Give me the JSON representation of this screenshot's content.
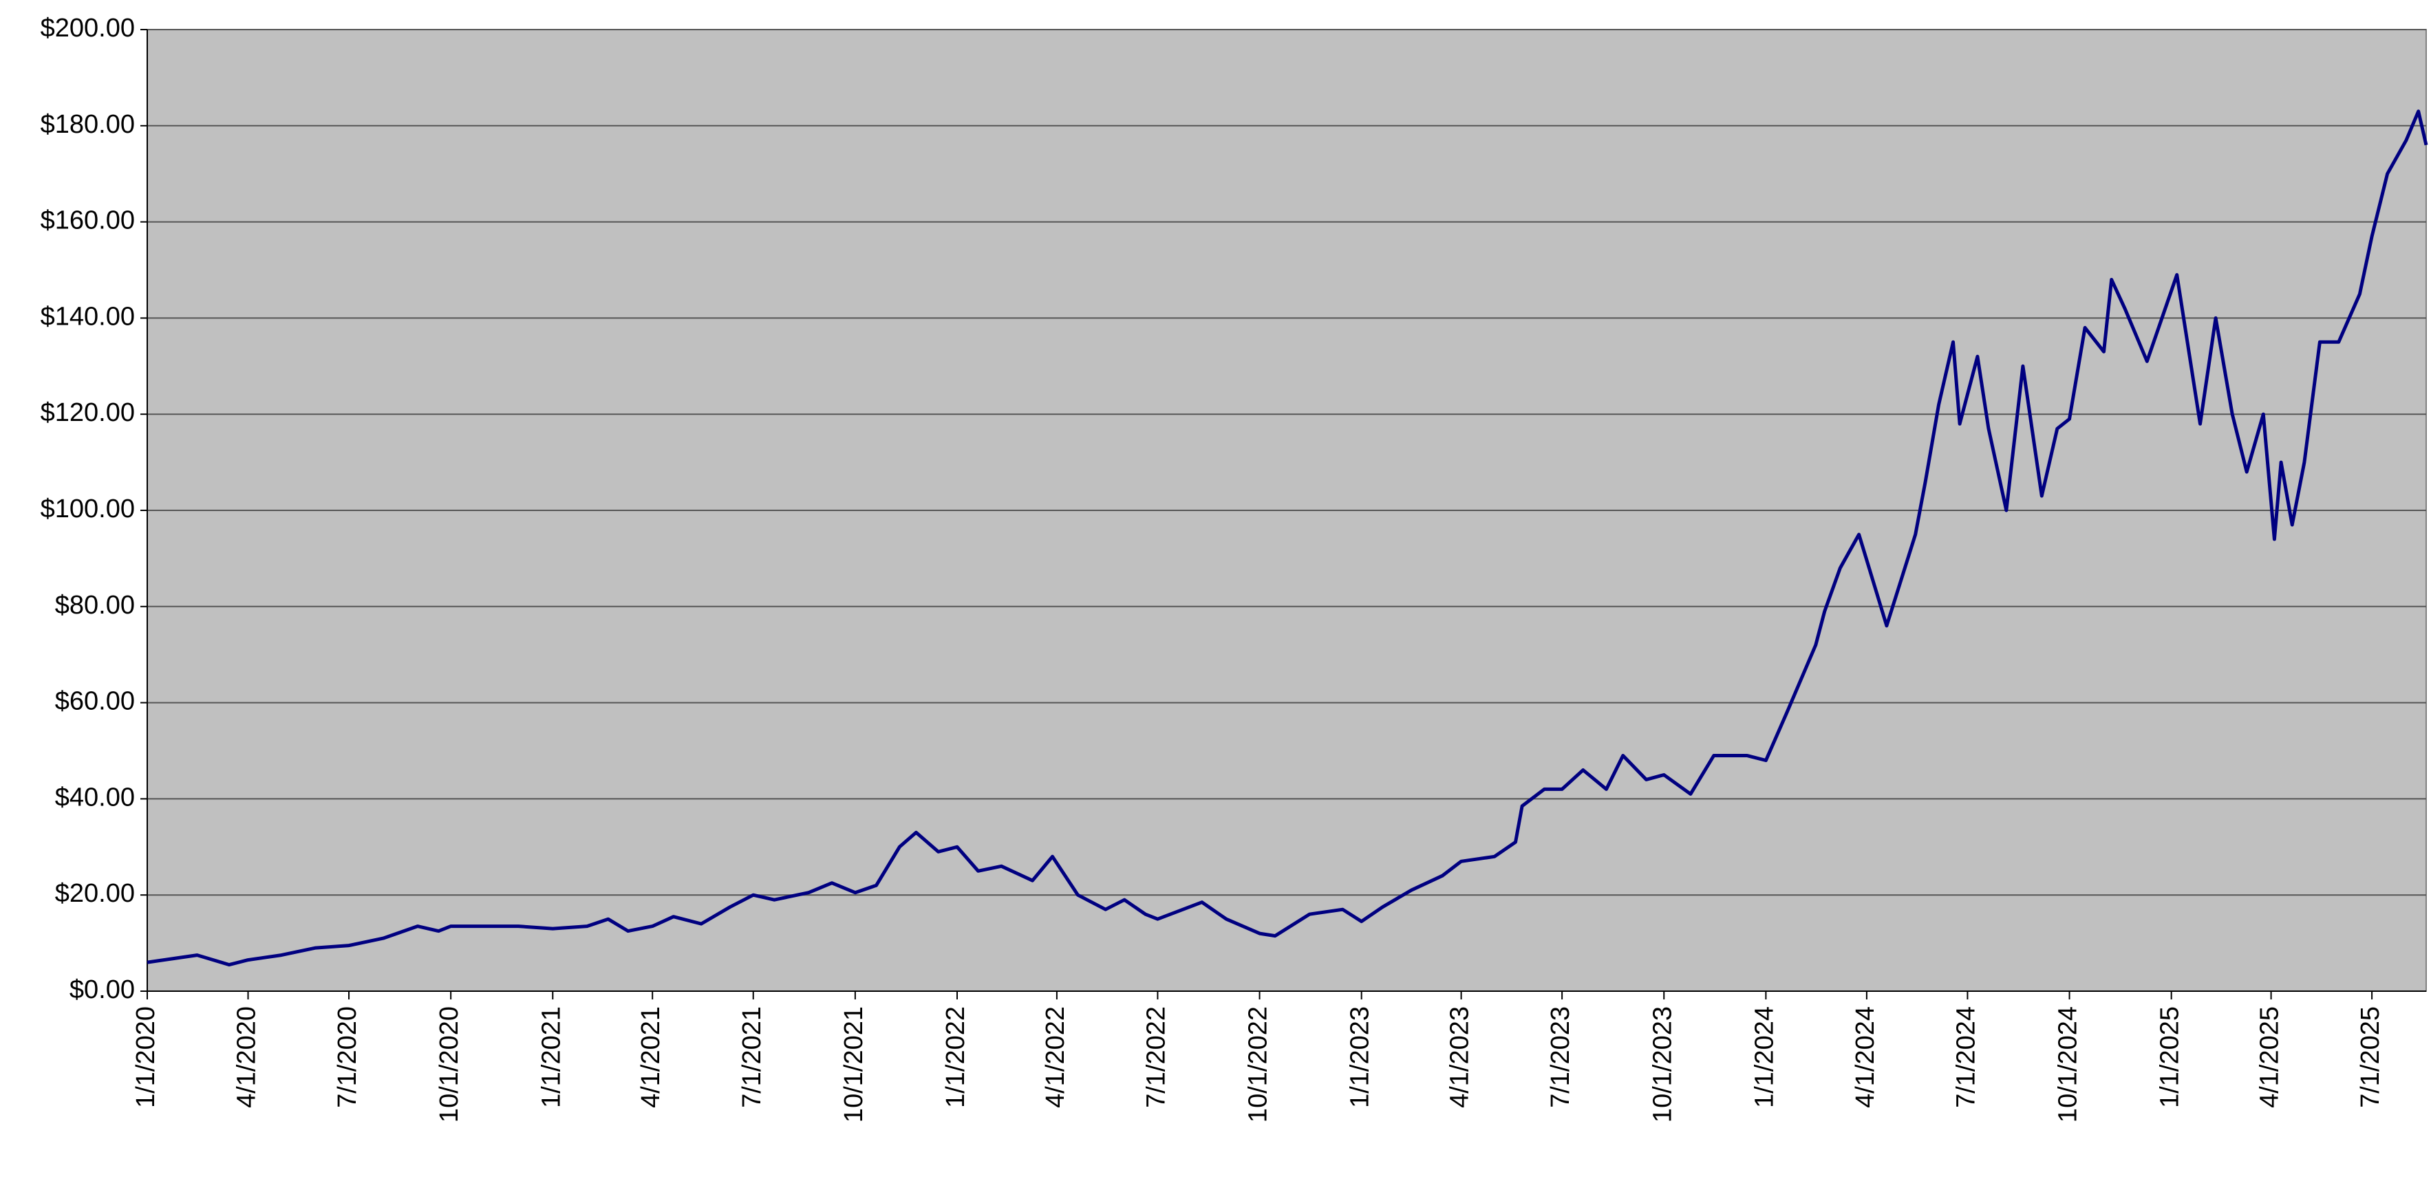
{
  "chart_data": {
    "type": "line",
    "x": [
      "2020-01-01",
      "2020-02-15",
      "2020-03-15",
      "2020-04-01",
      "2020-05-01",
      "2020-06-01",
      "2020-07-01",
      "2020-08-01",
      "2020-09-01",
      "2020-09-20",
      "2020-10-01",
      "2020-11-01",
      "2020-12-01",
      "2021-01-01",
      "2021-02-01",
      "2021-02-20",
      "2021-03-10",
      "2021-04-01",
      "2021-04-20",
      "2021-05-15",
      "2021-06-10",
      "2021-07-01",
      "2021-07-20",
      "2021-08-20",
      "2021-09-10",
      "2021-10-01",
      "2021-10-20",
      "2021-11-10",
      "2021-11-25",
      "2021-12-15",
      "2022-01-01",
      "2022-01-20",
      "2022-02-10",
      "2022-03-10",
      "2022-03-28",
      "2022-04-20",
      "2022-05-15",
      "2022-06-01",
      "2022-06-20",
      "2022-07-01",
      "2022-08-10",
      "2022-09-01",
      "2022-10-01",
      "2022-10-15",
      "2022-11-15",
      "2022-12-15",
      "2023-01-01",
      "2023-01-20",
      "2023-02-15",
      "2023-03-15",
      "2023-04-01",
      "2023-05-01",
      "2023-05-20",
      "2023-05-26",
      "2023-06-15",
      "2023-07-01",
      "2023-07-20",
      "2023-08-10",
      "2023-08-25",
      "2023-09-15",
      "2023-10-01",
      "2023-10-25",
      "2023-11-15",
      "2023-12-15",
      "2024-01-01",
      "2024-01-20",
      "2024-02-15",
      "2024-02-23",
      "2024-03-08",
      "2024-03-25",
      "2024-04-19",
      "2024-05-15",
      "2024-05-24",
      "2024-06-05",
      "2024-06-18",
      "2024-06-24",
      "2024-07-10",
      "2024-07-20",
      "2024-08-05",
      "2024-08-20",
      "2024-09-06",
      "2024-09-20",
      "2024-10-01",
      "2024-10-15",
      "2024-11-01",
      "2024-11-08",
      "2024-11-20",
      "2024-12-10",
      "2025-01-06",
      "2025-01-27",
      "2025-02-10",
      "2025-02-25",
      "2025-03-10",
      "2025-03-25",
      "2025-04-04",
      "2025-04-10",
      "2025-04-20",
      "2025-05-01",
      "2025-05-15",
      "2025-06-01",
      "2025-06-20",
      "2025-07-01",
      "2025-07-15",
      "2025-08-01",
      "2025-08-12",
      "2025-08-19"
    ],
    "series": [
      {
        "color": "#000080",
        "values": [
          6,
          7.5,
          5.5,
          6.5,
          7.5,
          9,
          9.5,
          11,
          13.5,
          12.5,
          13.5,
          13.5,
          13.5,
          13,
          13.5,
          15,
          12.5,
          13.5,
          15.5,
          14,
          17.5,
          20,
          19,
          20.5,
          22.5,
          20.5,
          22,
          30,
          33,
          29,
          30,
          25,
          26,
          23,
          28,
          20,
          17,
          19,
          16,
          15,
          18.5,
          15,
          12,
          11.5,
          16,
          17,
          14.5,
          17.5,
          21,
          24,
          27,
          28,
          31,
          38.5,
          42,
          42,
          46,
          42,
          49,
          44,
          45,
          41,
          49,
          49,
          48,
          58,
          72,
          79,
          88,
          95,
          76,
          95,
          106,
          122,
          135,
          118,
          132,
          117,
          100,
          130,
          103,
          117,
          119,
          138,
          133,
          148,
          142,
          131,
          149,
          118,
          140,
          120,
          108,
          120,
          94,
          110,
          97,
          110,
          135,
          135,
          145,
          157,
          170,
          177,
          183,
          176
        ]
      }
    ],
    "xlim": [
      "2020-01-01",
      "2025-08-19"
    ],
    "xticks": [
      {
        "value": "2020-01-01",
        "label": "1/1/2020"
      },
      {
        "value": "2020-04-01",
        "label": "4/1/2020"
      },
      {
        "value": "2020-07-01",
        "label": "7/1/2020"
      },
      {
        "value": "2020-10-01",
        "label": "10/1/2020"
      },
      {
        "value": "2021-01-01",
        "label": "1/1/2021"
      },
      {
        "value": "2021-04-01",
        "label": "4/1/2021"
      },
      {
        "value": "2021-07-01",
        "label": "7/1/2021"
      },
      {
        "value": "2021-10-01",
        "label": "10/1/2021"
      },
      {
        "value": "2022-01-01",
        "label": "1/1/2022"
      },
      {
        "value": "2022-04-01",
        "label": "4/1/2022"
      },
      {
        "value": "2022-07-01",
        "label": "7/1/2022"
      },
      {
        "value": "2022-10-01",
        "label": "10/1/2022"
      },
      {
        "value": "2023-01-01",
        "label": "1/1/2023"
      },
      {
        "value": "2023-04-01",
        "label": "4/1/2023"
      },
      {
        "value": "2023-07-01",
        "label": "7/1/2023"
      },
      {
        "value": "2023-10-01",
        "label": "10/1/2023"
      },
      {
        "value": "2024-01-01",
        "label": "1/1/2024"
      },
      {
        "value": "2024-04-01",
        "label": "4/1/2024"
      },
      {
        "value": "2024-07-01",
        "label": "7/1/2024"
      },
      {
        "value": "2024-10-01",
        "label": "10/1/2024"
      },
      {
        "value": "2025-01-01",
        "label": "1/1/2025"
      },
      {
        "value": "2025-04-01",
        "label": "4/1/2025"
      },
      {
        "value": "2025-07-01",
        "label": "7/1/2025"
      }
    ],
    "ylim": [
      0,
      200
    ],
    "yticks": [
      {
        "value": 0,
        "label": "$0.00"
      },
      {
        "value": 20,
        "label": "$20.00"
      },
      {
        "value": 40,
        "label": "$40.00"
      },
      {
        "value": 60,
        "label": "$60.00"
      },
      {
        "value": 80,
        "label": "$80.00"
      },
      {
        "value": 100,
        "label": "$100.00"
      },
      {
        "value": 120,
        "label": "$120.00"
      },
      {
        "value": 140,
        "label": "$140.00"
      },
      {
        "value": 160,
        "label": "$160.00"
      },
      {
        "value": 180,
        "label": "$180.00"
      },
      {
        "value": 200,
        "label": "$200.00"
      }
    ],
    "grid": true,
    "background": "#c0c0c0"
  }
}
